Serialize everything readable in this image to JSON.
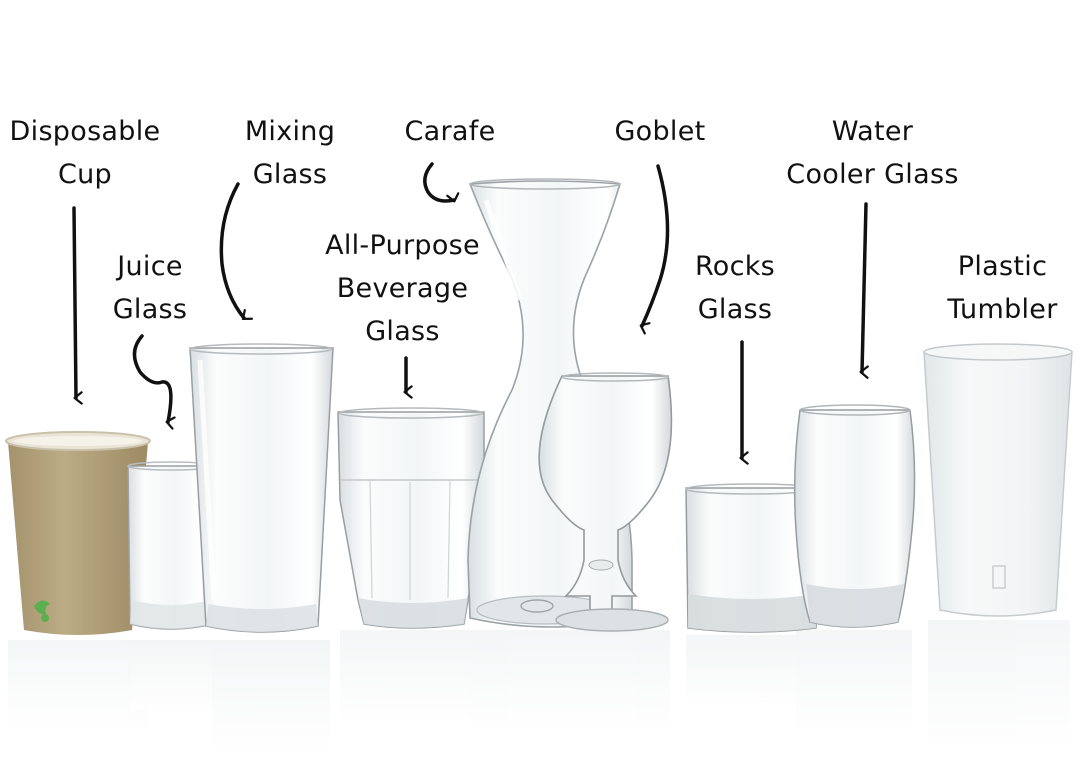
{
  "labels": {
    "disposable_cup": [
      "Disposable",
      "Cup"
    ],
    "juice_glass": [
      "Juice",
      "Glass"
    ],
    "mixing_glass": [
      "Mixing",
      "Glass"
    ],
    "all_purpose": [
      "All-Purpose",
      "Beverage",
      "Glass"
    ],
    "carafe": [
      "Carafe"
    ],
    "goblet": [
      "Goblet"
    ],
    "rocks_glass": [
      "Rocks",
      "Glass"
    ],
    "water_cooler": [
      "Water",
      "Cooler Glass"
    ],
    "plastic_tumbler": [
      "Plastic",
      "Tumbler"
    ]
  },
  "colors": {
    "ink": "#111111",
    "paper_cup": "#b5a47e",
    "paper_cup_logo": "#4caf50",
    "glass_edge": "#8f9497",
    "glass_fill": "#f2f5f6",
    "tumbler_fill": "#eef1f2"
  }
}
